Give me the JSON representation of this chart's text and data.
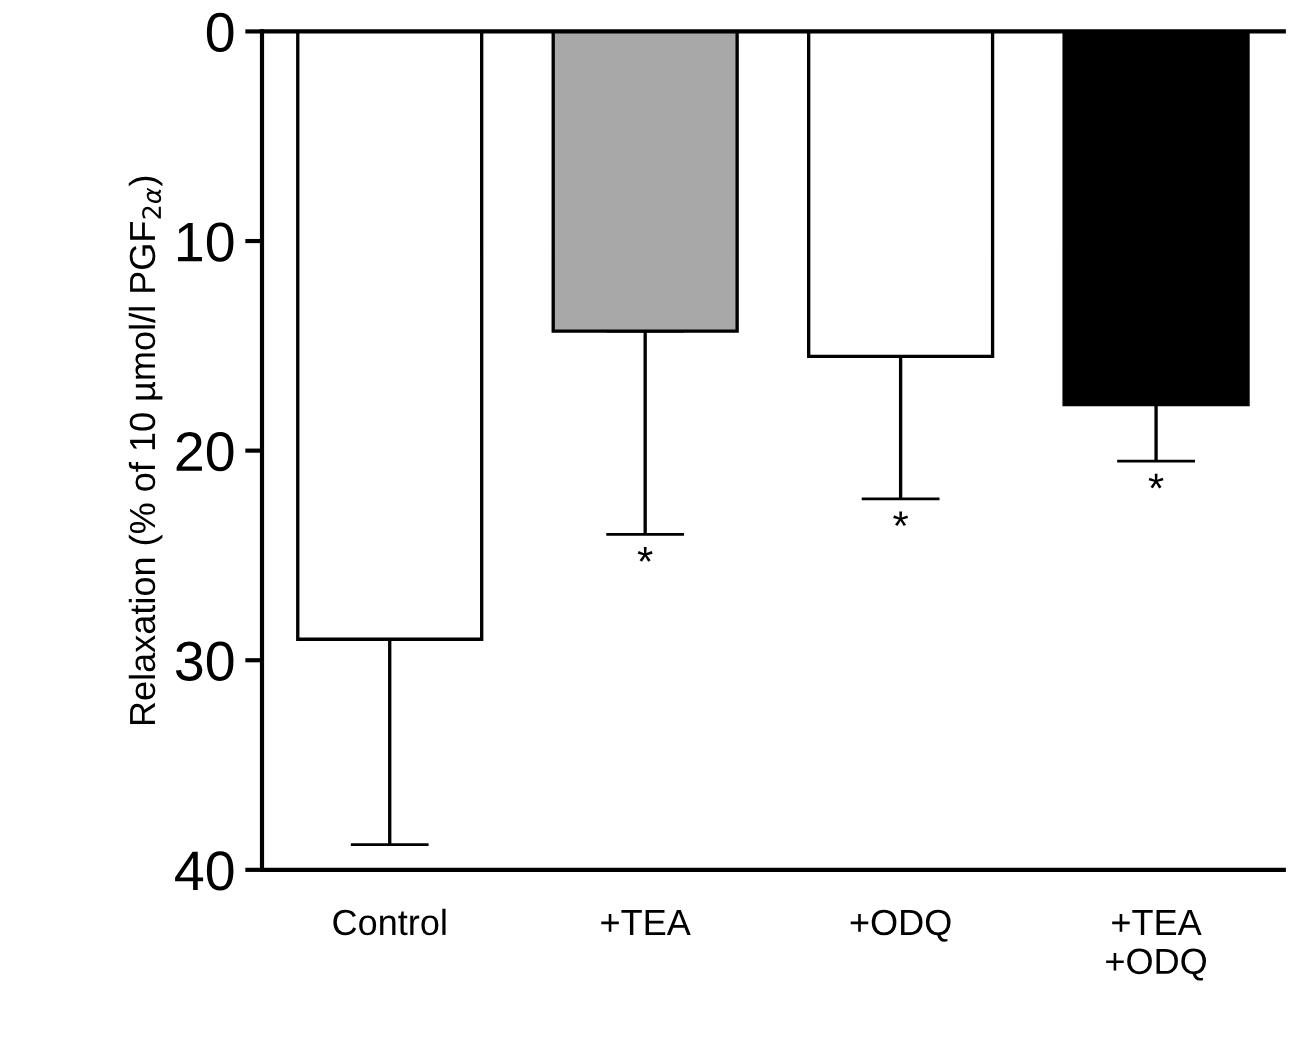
{
  "chart_data": {
    "type": "bar",
    "ylabel": "Relaxation (% of 10 µmol/l PGF$_{2α}$)",
    "categories": [
      "Control",
      "+TEA",
      "+ODQ",
      "+TEA\n+ODQ"
    ],
    "values": [
      29,
      14.3,
      15.5,
      17.8
    ],
    "errors": [
      [
        29,
        38.8
      ],
      [
        14.3,
        24
      ],
      [
        15.5,
        22.3
      ],
      [
        17.8,
        20.5
      ]
    ],
    "colors": [
      "#ffffff",
      "#a8a8a8",
      "#ffffff",
      "#000000"
    ],
    "ylim": [
      40,
      0
    ],
    "yticks": [
      0,
      10,
      20,
      30,
      40
    ],
    "grid": false,
    "annotations": [
      "*",
      "*",
      "*"
    ]
  }
}
